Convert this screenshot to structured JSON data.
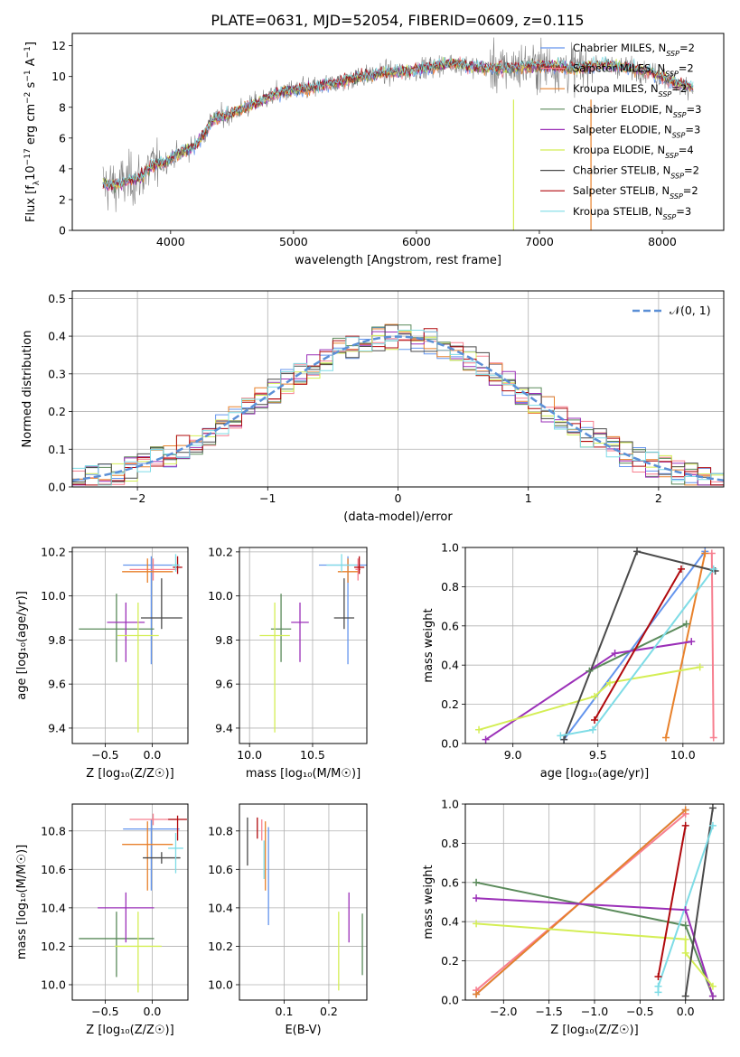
{
  "figure_title": "PLATE=0631, MJD=52054, FIBERID=0609, z=0.115",
  "series_names": [
    "Chabrier MILES, N$_{SSP}$=2",
    "Salpeter MILES, N$_{SSP}$=2",
    "Kroupa MILES, N$_{SSP}$=2",
    "Chabrier ELODIE, N$_{SSP}$=3",
    "Salpeter ELODIE, N$_{SSP}$=3",
    "Kroupa ELODIE, N$_{SSP}$=4",
    "Chabrier STELIB, N$_{SSP}$=2",
    "Salpeter STELIB, N$_{SSP}$=2",
    "Kroupa STELIB, N$_{SSP}$=3"
  ],
  "legend": [
    {
      "name": "Chabrier MILES, N",
      "sub": "SSP",
      "n": "=2",
      "color": "#6495ED"
    },
    {
      "name": "Salpeter MILES, N",
      "sub": "SSP",
      "n": "=2",
      "color": "#F77F8F"
    },
    {
      "name": "Kroupa MILES, N",
      "sub": "SSP",
      "n": "=2",
      "color": "#E8812B"
    },
    {
      "name": "Chabrier ELODIE, N",
      "sub": "SSP",
      "n": "=3",
      "color": "#5A8A5A"
    },
    {
      "name": "Salpeter ELODIE, N",
      "sub": "SSP",
      "n": "=3",
      "color": "#9B30B8"
    },
    {
      "name": "Kroupa ELODIE, N",
      "sub": "SSP",
      "n": "=4",
      "color": "#D4EE55"
    },
    {
      "name": "Chabrier STELIB, N",
      "sub": "SSP",
      "n": "=2",
      "color": "#4A4A4A"
    },
    {
      "name": "Salpeter STELIB, N",
      "sub": "SSP",
      "n": "=2",
      "color": "#B0090D"
    },
    {
      "name": "Kroupa STELIB, N",
      "sub": "SSP",
      "n": "=3",
      "color": "#7EDCE6"
    }
  ],
  "chart_data": [
    {
      "id": "spectrum",
      "type": "line",
      "xlabel": "wavelength [Angstrom, rest frame]",
      "ylabel_parts": [
        "Flux [f",
        "λ",
        "10",
        "−17",
        " erg cm",
        "−2",
        " s",
        "−1",
        " A",
        "−1",
        "]"
      ],
      "xlim": [
        3200,
        8500
      ],
      "ylim": [
        0,
        12.8
      ],
      "xticks": [
        4000,
        5000,
        6000,
        7000,
        8000
      ],
      "yticks": [
        0,
        2,
        4,
        6,
        8,
        10,
        12
      ],
      "data_spectrum": {
        "x": [
          3450,
          3550,
          3650,
          3750,
          3850,
          3950,
          4050,
          4200,
          4350,
          4500,
          4700,
          4900,
          5100,
          5300,
          5500,
          5700,
          5900,
          6100,
          6300,
          6500,
          6700,
          6900,
          7100,
          7300,
          7500,
          7700,
          7900,
          8100,
          8250
        ],
        "y": [
          3.0,
          2.9,
          3.2,
          3.4,
          4.2,
          4.4,
          4.9,
          5.5,
          7.2,
          7.6,
          8.3,
          9.0,
          9.2,
          9.5,
          9.9,
          10.2,
          10.3,
          10.6,
          10.9,
          10.6,
          10.5,
          10.7,
          10.7,
          10.5,
          10.8,
          10.6,
          10.3,
          9.6,
          9.3
        ]
      },
      "notes_annotations": [],
      "legend_position": "upper right"
    },
    {
      "id": "residuals",
      "type": "histogram",
      "xlabel": "(data-model)/error",
      "ylabel": "Normed distribution",
      "xlim": [
        -2.5,
        2.5
      ],
      "ylim": [
        0,
        0.52
      ],
      "xticks": [
        -2,
        -1,
        0,
        1,
        2
      ],
      "yticks": [
        0.0,
        0.1,
        0.2,
        0.3,
        0.4,
        0.5
      ],
      "grid": true,
      "normal_curve_label": "𝒩(0, 1)",
      "bin_width": 0.1,
      "legend_position": "upper right"
    },
    {
      "id": "z_age",
      "type": "errorbar",
      "xlabel": "Z [log₁₀(Z/Z☉)]",
      "ylabel": "age  [log₁₀(age/yr)]",
      "xlim": [
        -0.85,
        0.38
      ],
      "ylim": [
        9.33,
        10.22
      ],
      "xticks": [
        -0.5,
        0.0
      ],
      "yticks": [
        9.4,
        9.6,
        9.8,
        10.0,
        10.2
      ],
      "grid": true,
      "points": [
        {
          "x": -0.01,
          "xerr": 0.3,
          "y": 10.14,
          "yerr_lo": 0.45,
          "yerr_hi": 0.04
        },
        {
          "x": 0.01,
          "xerr": 0.25,
          "y": 10.12,
          "yerr_lo": 0.05,
          "yerr_hi": 0.05
        },
        {
          "x": -0.05,
          "xerr": 0.27,
          "y": 10.11,
          "yerr_lo": 0.05,
          "yerr_hi": 0.06
        },
        {
          "x": -0.38,
          "xerr": 0.4,
          "y": 9.85,
          "yerr_lo": 0.15,
          "yerr_hi": 0.16
        },
        {
          "x": -0.28,
          "xerr": 0.2,
          "y": 9.88,
          "yerr_lo": 0.18,
          "yerr_hi": 0.09
        },
        {
          "x": -0.15,
          "xerr": 0.22,
          "y": 9.82,
          "yerr_lo": 0.44,
          "yerr_hi": 0.15
        },
        {
          "x": 0.1,
          "xerr": 0.22,
          "y": 9.9,
          "yerr_lo": 0.05,
          "yerr_hi": 0.18
        },
        {
          "x": 0.27,
          "xerr": 0.05,
          "y": 10.13,
          "yerr_lo": 0.03,
          "yerr_hi": 0.05
        },
        {
          "x": 0.25,
          "xerr": 0.04,
          "y": 10.14,
          "yerr_lo": 0.03,
          "yerr_hi": 0.05
        }
      ]
    },
    {
      "id": "mass_age",
      "type": "errorbar",
      "xlabel": "mass [log₁₀(M/M☉)]",
      "ylabel": "",
      "xlim": [
        9.92,
        10.93
      ],
      "ylim": [
        9.33,
        10.22
      ],
      "xticks": [
        10.0,
        10.5
      ],
      "yticks": [
        9.4,
        9.6,
        9.8,
        10.0,
        10.2
      ],
      "grid": true,
      "points": [
        {
          "x": 10.78,
          "xerr": 0.23,
          "y": 10.14,
          "yerr_lo": 0.45,
          "yerr_hi": 0.04
        },
        {
          "x": 10.86,
          "xerr": 0.02,
          "y": 10.12,
          "yerr_lo": 0.05,
          "yerr_hi": 0.05
        },
        {
          "x": 10.78,
          "xerr": 0.08,
          "y": 10.11,
          "yerr_lo": 0.05,
          "yerr_hi": 0.06
        },
        {
          "x": 10.25,
          "xerr": 0.08,
          "y": 9.85,
          "yerr_lo": 0.15,
          "yerr_hi": 0.16
        },
        {
          "x": 10.4,
          "xerr": 0.07,
          "y": 9.88,
          "yerr_lo": 0.18,
          "yerr_hi": 0.09
        },
        {
          "x": 10.2,
          "xerr": 0.12,
          "y": 9.82,
          "yerr_lo": 0.44,
          "yerr_hi": 0.15
        },
        {
          "x": 10.75,
          "xerr": 0.08,
          "y": 9.9,
          "yerr_lo": 0.05,
          "yerr_hi": 0.18
        },
        {
          "x": 10.87,
          "xerr": 0.04,
          "y": 10.13,
          "yerr_lo": 0.03,
          "yerr_hi": 0.05
        },
        {
          "x": 10.73,
          "xerr": 0.12,
          "y": 10.14,
          "yerr_lo": 0.03,
          "yerr_hi": 0.05
        }
      ]
    },
    {
      "id": "age_weight",
      "type": "line",
      "xlabel": "age  [log₁₀(age/yr)]",
      "ylabel": "mass weight",
      "xlim": [
        8.72,
        10.24
      ],
      "ylim": [
        0.0,
        1.0
      ],
      "xticks": [
        9.0,
        9.5,
        10.0
      ],
      "yticks": [
        0.0,
        0.2,
        0.4,
        0.6,
        0.8,
        1.0
      ],
      "grid": true,
      "series": [
        {
          "x": [
            9.3,
            10.13
          ],
          "y": [
            0.02,
            0.98
          ]
        },
        {
          "x": [
            10.18,
            10.17
          ],
          "y": [
            0.03,
            0.97
          ]
        },
        {
          "x": [
            9.9,
            10.13
          ],
          "y": [
            0.03,
            0.97
          ]
        },
        {
          "x": [
            9.45,
            10.02
          ],
          "y": [
            0.37,
            0.61
          ]
        },
        {
          "x": [
            8.84,
            9.6,
            10.05
          ],
          "y": [
            0.02,
            0.46,
            0.52
          ]
        },
        {
          "x": [
            8.8,
            9.48,
            9.57,
            10.1
          ],
          "y": [
            0.07,
            0.24,
            0.31,
            0.39
          ]
        },
        {
          "x": [
            9.3,
            9.73,
            10.19
          ],
          "y": [
            0.02,
            0.98,
            0.88
          ]
        },
        {
          "x": [
            9.48,
            9.99
          ],
          "y": [
            0.12,
            0.89
          ]
        },
        {
          "x": [
            9.28,
            9.47,
            10.18
          ],
          "y": [
            0.04,
            0.07,
            0.89
          ]
        }
      ]
    },
    {
      "id": "z_mass",
      "type": "errorbar",
      "xlabel": "Z [log₁₀(Z/Z☉)]",
      "ylabel": "mass [log₁₀(M/M☉)]",
      "xlim": [
        -0.85,
        0.38
      ],
      "ylim": [
        9.92,
        10.94
      ],
      "xticks": [
        -0.5,
        0.0
      ],
      "yticks": [
        10.0,
        10.2,
        10.4,
        10.6,
        10.8
      ],
      "grid": true,
      "points": [
        {
          "x": -0.01,
          "xerr": 0.3,
          "y": 10.81,
          "yerr_lo": 0.32,
          "yerr_hi": 0.05
        },
        {
          "x": 0.01,
          "xerr": 0.25,
          "y": 10.86,
          "yerr_lo": 0.03,
          "yerr_hi": 0.03
        },
        {
          "x": -0.05,
          "xerr": 0.27,
          "y": 10.73,
          "yerr_lo": 0.24,
          "yerr_hi": 0.12
        },
        {
          "x": -0.38,
          "xerr": 0.4,
          "y": 10.24,
          "yerr_lo": 0.2,
          "yerr_hi": 0.14
        },
        {
          "x": -0.28,
          "xerr": 0.3,
          "y": 10.4,
          "yerr_lo": 0.18,
          "yerr_hi": 0.08
        },
        {
          "x": -0.15,
          "xerr": 0.25,
          "y": 10.2,
          "yerr_lo": 0.24,
          "yerr_hi": 0.18
        },
        {
          "x": 0.1,
          "xerr": 0.2,
          "y": 10.66,
          "yerr_lo": 0.03,
          "yerr_hi": 0.03
        },
        {
          "x": 0.27,
          "xerr": 0.1,
          "y": 10.86,
          "yerr_lo": 0.11,
          "yerr_hi": 0.02
        },
        {
          "x": 0.25,
          "xerr": 0.08,
          "y": 10.71,
          "yerr_lo": 0.13,
          "yerr_hi": 0.08
        }
      ]
    },
    {
      "id": "ebv_mass",
      "type": "errorbar",
      "xlabel": "E(B-V)",
      "ylabel": "",
      "xlim": [
        0.0,
        0.285
      ],
      "ylim": [
        9.92,
        10.94
      ],
      "xticks": [
        0.1,
        0.2
      ],
      "yticks": [
        10.0,
        10.2,
        10.4,
        10.6,
        10.8
      ],
      "grid": true,
      "points": [
        {
          "x": 0.065,
          "xerr": 0.0,
          "y": 10.65,
          "yerr_lo": 0.34,
          "yerr_hi": 0.17
        },
        {
          "x": 0.05,
          "xerr": 0.0,
          "y": 10.8,
          "yerr_lo": 0.05,
          "yerr_hi": 0.06
        },
        {
          "x": 0.058,
          "xerr": 0.0,
          "y": 10.73,
          "yerr_lo": 0.24,
          "yerr_hi": 0.12
        },
        {
          "x": 0.275,
          "xerr": 0.0,
          "y": 10.22,
          "yerr_lo": 0.17,
          "yerr_hi": 0.15
        },
        {
          "x": 0.245,
          "xerr": 0.0,
          "y": 10.4,
          "yerr_lo": 0.18,
          "yerr_hi": 0.08
        },
        {
          "x": 0.222,
          "xerr": 0.0,
          "y": 10.19,
          "yerr_lo": 0.22,
          "yerr_hi": 0.19
        },
        {
          "x": 0.018,
          "xerr": 0.0,
          "y": 10.76,
          "yerr_lo": 0.14,
          "yerr_hi": 0.11
        },
        {
          "x": 0.04,
          "xerr": 0.0,
          "y": 10.81,
          "yerr_lo": 0.05,
          "yerr_hi": 0.06
        },
        {
          "x": 0.055,
          "xerr": 0.0,
          "y": 10.67,
          "yerr_lo": 0.12,
          "yerr_hi": 0.08
        }
      ]
    },
    {
      "id": "z_weight",
      "type": "line",
      "xlabel": "Z [log₁₀(Z/Z☉)]",
      "ylabel": "mass weight",
      "xlim": [
        -2.42,
        0.42
      ],
      "ylim": [
        0.0,
        1.0
      ],
      "xticks": [
        -2.0,
        -1.5,
        -1.0,
        -0.5,
        0.0
      ],
      "yticks": [
        0.0,
        0.2,
        0.4,
        0.6,
        0.8,
        1.0
      ],
      "grid": true,
      "series": [
        {
          "x": [
            -2.3,
            0.0
          ],
          "y": [
            0.03,
            0.97
          ]
        },
        {
          "x": [
            -2.3,
            0.0
          ],
          "y": [
            0.05,
            0.95
          ]
        },
        {
          "x": [
            -2.3,
            0.0
          ],
          "y": [
            0.03,
            0.97
          ]
        },
        {
          "x": [
            -2.3,
            0.0,
            0.3
          ],
          "y": [
            0.6,
            0.38,
            0.02
          ]
        },
        {
          "x": [
            -2.3,
            0.0,
            0.3
          ],
          "y": [
            0.52,
            0.46,
            0.02
          ]
        },
        {
          "x": [
            -2.3,
            0.0,
            0.0,
            0.3
          ],
          "y": [
            0.39,
            0.31,
            0.24,
            0.07
          ]
        },
        {
          "x": [
            0.0,
            0.3
          ],
          "y": [
            0.02,
            0.98
          ]
        },
        {
          "x": [
            -0.3,
            0.0
          ],
          "y": [
            0.12,
            0.89
          ]
        },
        {
          "x": [
            -0.3,
            -0.3,
            0.3
          ],
          "y": [
            0.04,
            0.07,
            0.89
          ]
        }
      ]
    }
  ]
}
